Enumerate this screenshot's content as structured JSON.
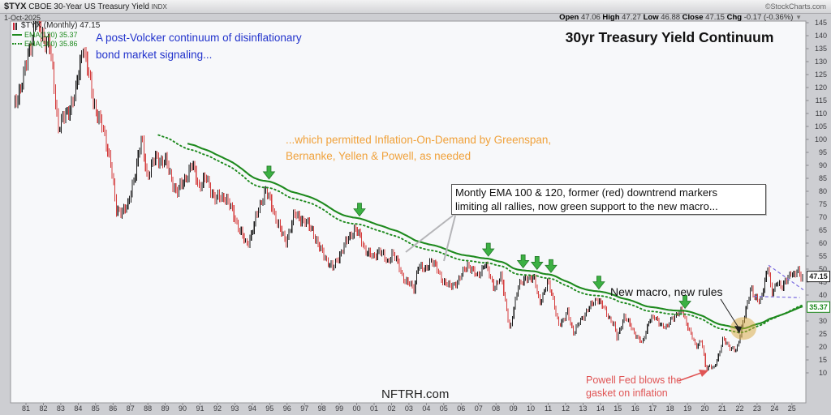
{
  "header": {
    "symbol": "$TYX",
    "description": "CBOE 30-Year US Treasury Yield",
    "index_tag": "INDX",
    "date": "1-Oct-2025",
    "copyright": "©StockCharts.com",
    "quote": {
      "open_label": "Open",
      "open": "47.06",
      "high_label": "High",
      "high": "47.27",
      "low_label": "Low",
      "low": "46.88",
      "close_label": "Close",
      "close": "47.15",
      "chg_label": "Chg",
      "chg": "-0.17 (-0.36%)"
    }
  },
  "legend": {
    "main": "$TYX (Monthly) 47.15",
    "ema120": "EMA(120) 35.37",
    "ema100": "EMA(100) 35.86"
  },
  "title": "30yr Treasury Yield Continuum",
  "watermark": "NFTRH.com",
  "annotations": {
    "blue": [
      "A post-Volcker continuum of disinflationary",
      "bond market signaling..."
    ],
    "orange": [
      "...which permitted Inflation-On-Demand by Greenspan,",
      "Bernanke, Yellen & Powell, as needed"
    ],
    "box": [
      "Montly EMA 100 & 120, former (red) downtrend markers",
      "limiting all rallies, now green support to the new macro..."
    ],
    "new_macro": "New macro, new rules",
    "powell": [
      "Powell Fed blows the",
      "gasket on inflation"
    ]
  },
  "price_labels": {
    "last": "47.15",
    "ema": "35.37"
  },
  "colors": {
    "plot_bg": "#f7f8fa",
    "page_bg": "#cdced2",
    "bar_up": "#1a1a1a",
    "bar_down": "#d43c3c",
    "ema_green": "#1e8a1e",
    "arrow_green": "#3cb043",
    "arrow_green_edge": "#237a28",
    "annotation_blue": "#2233cc",
    "annotation_orange": "#f0a13a",
    "annotation_red": "#e05555",
    "wedge_purple": "#7b6ce0",
    "axis_text": "#3c3c40",
    "callout_gray": "#b5b5b8",
    "highlight_yellow": "rgba(216,166,58,0.5)"
  },
  "chart_data": {
    "type": "bar",
    "subtype": "monthly-ohlc",
    "series_name": "$TYX 30-year US treasury yield, monthly (yield % x 10)",
    "xlim": [
      1980.3,
      2025.95
    ],
    "ylim": [
      0,
      146
    ],
    "x_ticks": [
      "81",
      "82",
      "83",
      "84",
      "85",
      "86",
      "87",
      "88",
      "89",
      "90",
      "91",
      "92",
      "93",
      "94",
      "95",
      "96",
      "97",
      "98",
      "99",
      "00",
      "01",
      "02",
      "03",
      "04",
      "05",
      "06",
      "07",
      "08",
      "09",
      "10",
      "11",
      "12",
      "13",
      "14",
      "15",
      "16",
      "17",
      "18",
      "19",
      "20",
      "21",
      "22",
      "23",
      "24",
      "25"
    ],
    "y_ticks": [
      10,
      15,
      20,
      25,
      30,
      40,
      45,
      50,
      55,
      60,
      65,
      70,
      75,
      80,
      85,
      90,
      95,
      100,
      105,
      110,
      115,
      120,
      125,
      130,
      135,
      140,
      145
    ],
    "last_close": 47.15,
    "ema_windows": [
      120,
      100
    ],
    "ema_last": {
      "ema120": 35.37,
      "ema100": 35.86
    },
    "anchors": [
      [
        1980.42,
        112
      ],
      [
        1981.0,
        124
      ],
      [
        1981.7,
        146
      ],
      [
        1982.1,
        140
      ],
      [
        1982.5,
        136
      ],
      [
        1983.0,
        105
      ],
      [
        1983.5,
        110
      ],
      [
        1984.0,
        118
      ],
      [
        1984.42,
        137
      ],
      [
        1985.0,
        115
      ],
      [
        1985.5,
        105
      ],
      [
        1986.0,
        92
      ],
      [
        1986.33,
        72
      ],
      [
        1987.0,
        74
      ],
      [
        1987.3,
        84
      ],
      [
        1987.79,
        100
      ],
      [
        1988.1,
        86
      ],
      [
        1988.6,
        93
      ],
      [
        1989.2,
        91
      ],
      [
        1989.8,
        79
      ],
      [
        1990.1,
        83
      ],
      [
        1990.7,
        90
      ],
      [
        1991.1,
        82
      ],
      [
        1991.5,
        85
      ],
      [
        1992.0,
        77
      ],
      [
        1992.6,
        78
      ],
      [
        1993.0,
        72
      ],
      [
        1993.8,
        59
      ],
      [
        1994.1,
        64
      ],
      [
        1994.88,
        81
      ],
      [
        1995.6,
        68
      ],
      [
        1996.05,
        60
      ],
      [
        1996.55,
        71
      ],
      [
        1997.05,
        69
      ],
      [
        1997.6,
        65
      ],
      [
        1998.0,
        58
      ],
      [
        1998.78,
        50
      ],
      [
        1999.1,
        55
      ],
      [
        1999.6,
        61
      ],
      [
        2000.05,
        66
      ],
      [
        2000.6,
        58
      ],
      [
        2001.1,
        54
      ],
      [
        2001.45,
        58
      ],
      [
        2001.9,
        52
      ],
      [
        2002.2,
        57
      ],
      [
        2002.78,
        47
      ],
      [
        2003.45,
        42
      ],
      [
        2003.65,
        52
      ],
      [
        2004.05,
        49
      ],
      [
        2004.4,
        54
      ],
      [
        2005.05,
        46
      ],
      [
        2005.5,
        43
      ],
      [
        2006.05,
        46
      ],
      [
        2006.5,
        52
      ],
      [
        2007.05,
        47
      ],
      [
        2007.5,
        52
      ],
      [
        2008.05,
        43
      ],
      [
        2008.45,
        47
      ],
      [
        2008.96,
        26
      ],
      [
        2009.1,
        32
      ],
      [
        2009.45,
        45
      ],
      [
        2010.05,
        46
      ],
      [
        2010.3,
        48
      ],
      [
        2010.65,
        36
      ],
      [
        2011.1,
        46
      ],
      [
        2011.75,
        29
      ],
      [
        2012.05,
        30
      ],
      [
        2012.25,
        34
      ],
      [
        2012.6,
        25
      ],
      [
        2013.05,
        31
      ],
      [
        2013.95,
        39
      ],
      [
        2014.5,
        33
      ],
      [
        2014.95,
        28
      ],
      [
        2015.08,
        23
      ],
      [
        2015.5,
        32
      ],
      [
        2016.05,
        26
      ],
      [
        2016.55,
        21
      ],
      [
        2016.95,
        31
      ],
      [
        2017.25,
        31
      ],
      [
        2017.95,
        27
      ],
      [
        2018.2,
        31
      ],
      [
        2018.85,
        34
      ],
      [
        2019.1,
        29
      ],
      [
        2019.62,
        20
      ],
      [
        2019.95,
        23
      ],
      [
        2020.2,
        11
      ],
      [
        2020.45,
        13
      ],
      [
        2020.65,
        12
      ],
      [
        2020.95,
        16.5
      ],
      [
        2021.2,
        24
      ],
      [
        2021.6,
        19
      ],
      [
        2021.95,
        19
      ],
      [
        2022.4,
        31
      ],
      [
        2022.8,
        44
      ],
      [
        2022.97,
        39
      ],
      [
        2023.3,
        37
      ],
      [
        2023.76,
        51
      ],
      [
        2023.97,
        40
      ],
      [
        2024.3,
        46
      ],
      [
        2024.55,
        42
      ],
      [
        2024.75,
        45
      ],
      [
        2024.97,
        48
      ],
      [
        2025.1,
        49
      ],
      [
        2025.3,
        46.5
      ],
      [
        2025.45,
        50
      ],
      [
        2025.6,
        48
      ],
      [
        2025.75,
        47.15
      ]
    ],
    "green_arrow_years": [
      1995.1,
      2000.3,
      2007.7,
      2009.7,
      2010.5,
      2011.3,
      2014.05,
      2019.0
    ],
    "highlight_ellipse": {
      "t": 2022.35
    },
    "wedge": {
      "upper": [
        [
          2023.8,
          51.5
        ],
        [
          2025.8,
          42
        ]
      ],
      "lower": [
        [
          2022.95,
          39.5
        ],
        [
          2025.6,
          39
        ]
      ]
    }
  }
}
